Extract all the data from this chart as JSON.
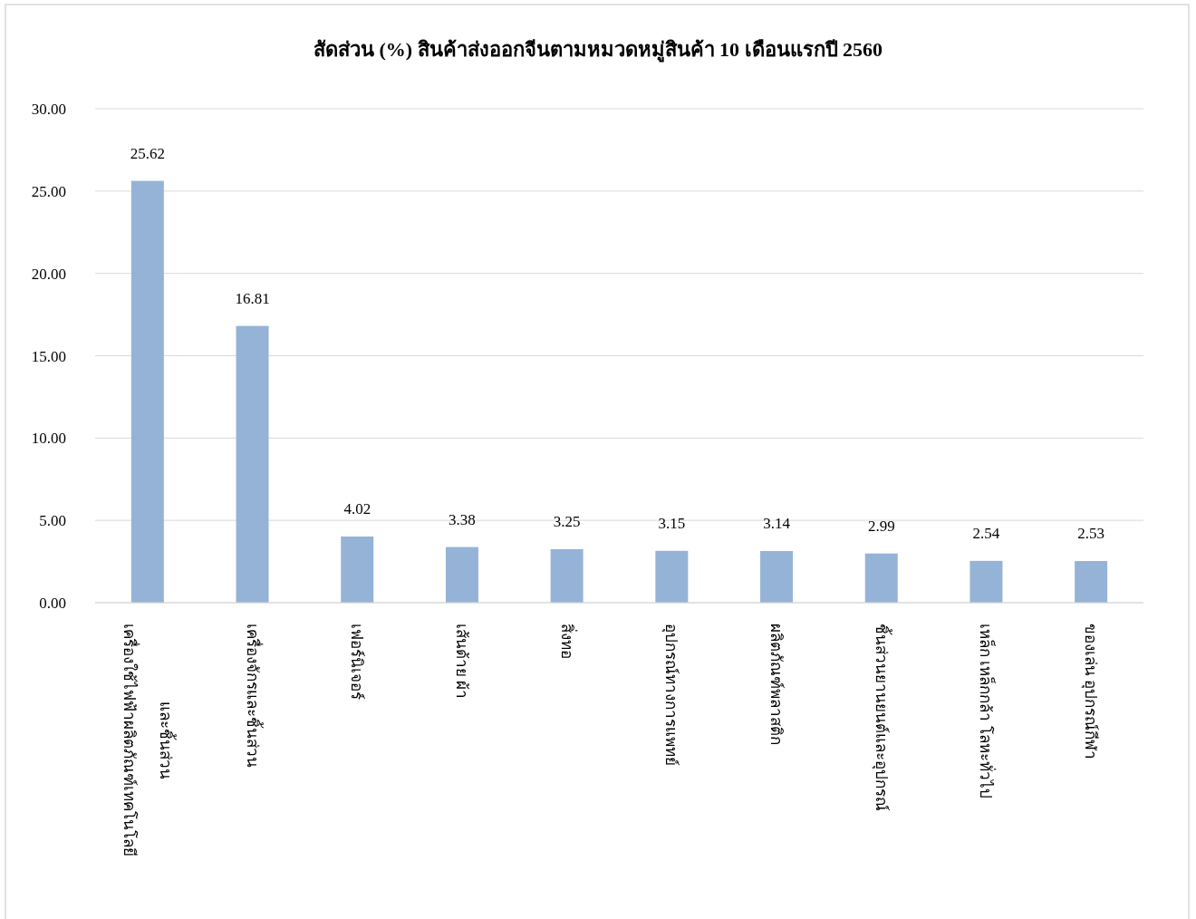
{
  "chart_data": {
    "type": "bar",
    "title": "สัดส่วน (%) สินค้าส่งออกจีนตามหมวดหมู่สินค้า  10 เดือนแรกปี 2560",
    "categories": [
      "เครื่องใช้ไฟฟ้าผลิตภัณฑ์เทคโนโลยี และชิ้นส่วน",
      "เครื่องจักรและชิ้นส่วน",
      "เฟอร์นิเจอร์",
      "เส้นด้าย ผ้า",
      "สิ่งทอ",
      "อุปกรณ์ทางการแพทย์",
      "ผลิตภัณฑ์พลาสติก",
      "ชิ้นส่วนยานยนต์และอุปกรณ์",
      "เหล็ก เหล็กกล้า โลหะทั่วไป",
      "ของเล่น อุปกรณ์กีฬา"
    ],
    "values": [
      25.62,
      16.81,
      4.02,
      3.38,
      3.25,
      3.15,
      3.14,
      2.99,
      2.54,
      2.53
    ],
    "color": "#95b3d7",
    "ylim": [
      0,
      30
    ],
    "yticks": [
      {
        "value": 0,
        "label": "0.00"
      },
      {
        "value": 5,
        "label": "5.00"
      },
      {
        "value": 10,
        "label": "10.00"
      },
      {
        "value": 15,
        "label": "15.00"
      },
      {
        "value": 20,
        "label": "20.00"
      },
      {
        "value": 25,
        "label": "25.00"
      },
      {
        "value": 30,
        "label": "30.00"
      }
    ],
    "grid": "y",
    "data_labels": true
  }
}
